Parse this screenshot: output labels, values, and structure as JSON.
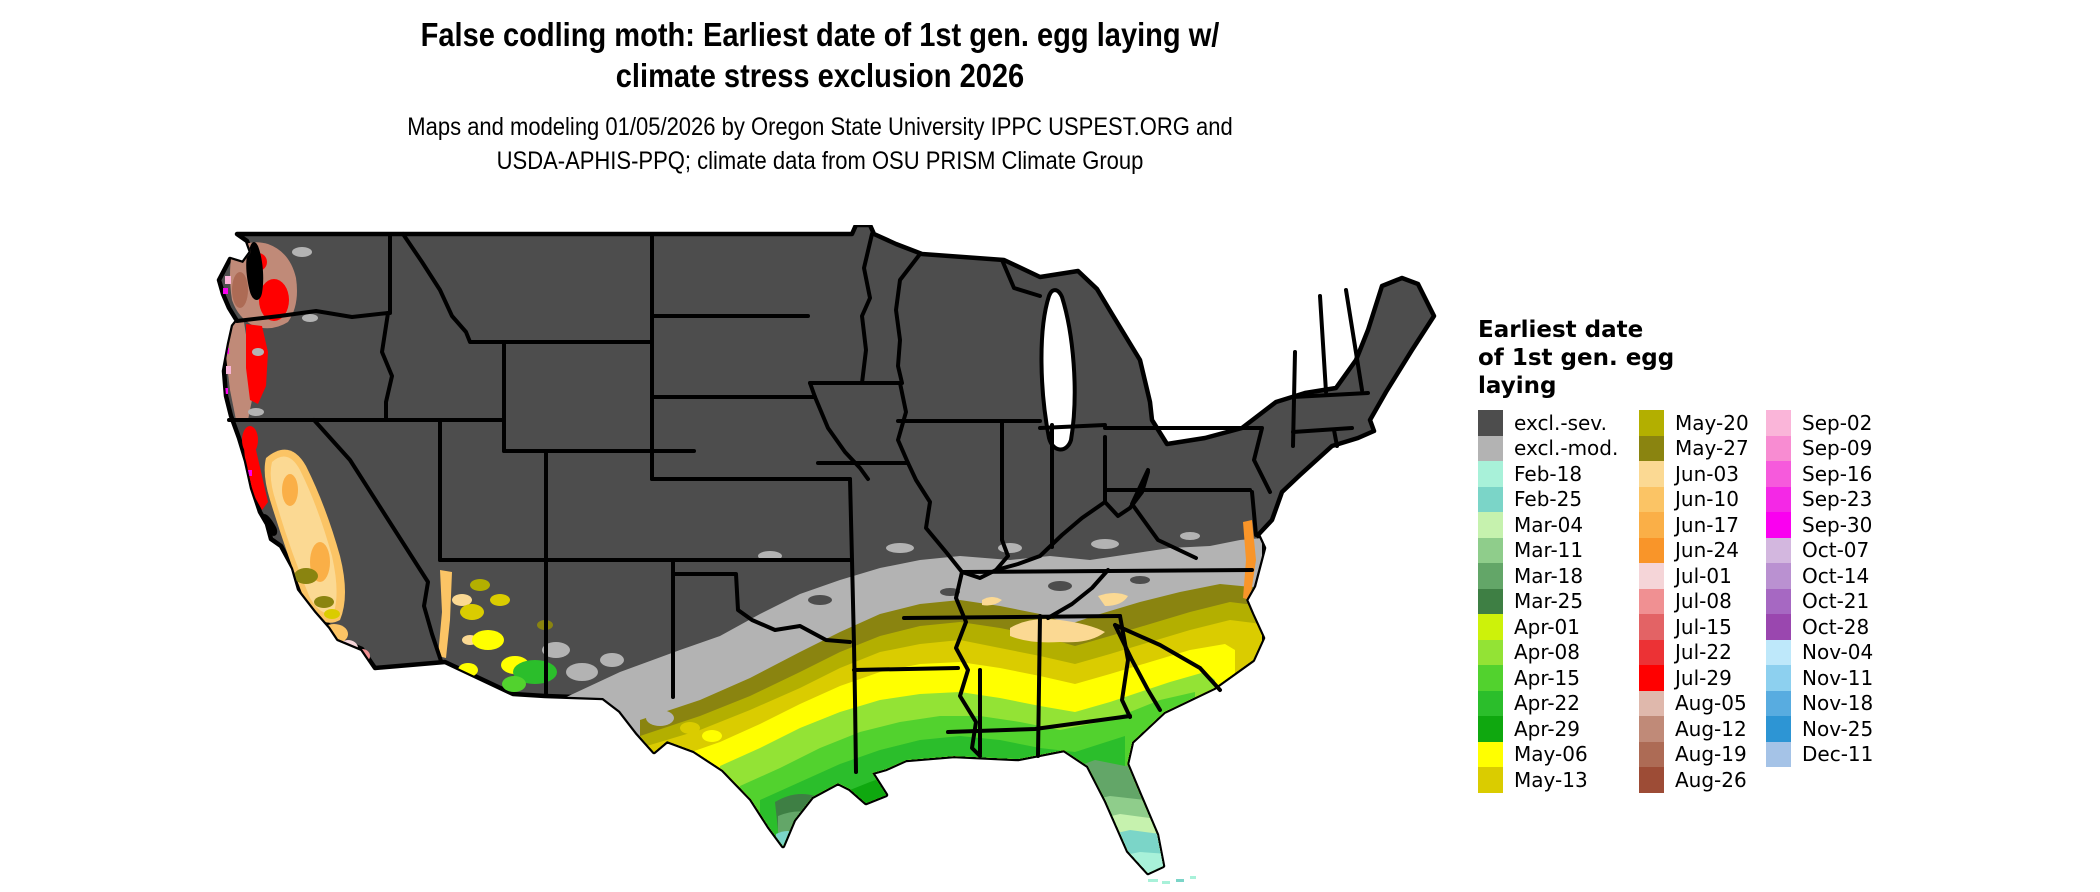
{
  "header": {
    "title_line1": "False codling moth: Earliest date of 1st gen. egg laying w/",
    "title_line2": "climate stress exclusion 2026",
    "subtitle_line1": "Maps and modeling 01/05/2026 by Oregon State University IPPC USPEST.ORG and",
    "subtitle_line2": "USDA-APHIS-PPQ; climate data from OSU PRISM Climate Group"
  },
  "legend": {
    "title_lines": [
      "Earliest date",
      "of 1st gen. egg",
      "laying"
    ],
    "columns": [
      {
        "entries": [
          {
            "label": "excl.-sev.",
            "color_key": "excl_sev"
          },
          {
            "label": "excl.-mod.",
            "color_key": "excl_mod"
          },
          {
            "label": "Feb-18",
            "color_key": "feb18"
          },
          {
            "label": "Feb-25",
            "color_key": "feb25"
          },
          {
            "label": "Mar-04",
            "color_key": "mar04"
          },
          {
            "label": "Mar-11",
            "color_key": "mar11"
          },
          {
            "label": "Mar-18",
            "color_key": "mar18"
          },
          {
            "label": "Mar-25",
            "color_key": "mar25"
          },
          {
            "label": "Apr-01",
            "color_key": "apr01"
          },
          {
            "label": "Apr-08",
            "color_key": "apr08"
          },
          {
            "label": "Apr-15",
            "color_key": "apr15"
          },
          {
            "label": "Apr-22",
            "color_key": "apr22"
          },
          {
            "label": "Apr-29",
            "color_key": "apr29"
          },
          {
            "label": "May-06",
            "color_key": "may06"
          },
          {
            "label": "May-13",
            "color_key": "may13"
          }
        ]
      },
      {
        "entries": [
          {
            "label": "May-20",
            "color_key": "may20"
          },
          {
            "label": "May-27",
            "color_key": "may27"
          },
          {
            "label": "Jun-03",
            "color_key": "jun03"
          },
          {
            "label": "Jun-10",
            "color_key": "jun10"
          },
          {
            "label": "Jun-17",
            "color_key": "jun17"
          },
          {
            "label": "Jun-24",
            "color_key": "jun24"
          },
          {
            "label": "Jul-01",
            "color_key": "jul01"
          },
          {
            "label": "Jul-08",
            "color_key": "jul08"
          },
          {
            "label": "Jul-15",
            "color_key": "jul15"
          },
          {
            "label": "Jul-22",
            "color_key": "jul22"
          },
          {
            "label": "Jul-29",
            "color_key": "jul29"
          },
          {
            "label": "Aug-05",
            "color_key": "aug05"
          },
          {
            "label": "Aug-12",
            "color_key": "aug12"
          },
          {
            "label": "Aug-19",
            "color_key": "aug19"
          },
          {
            "label": "Aug-26",
            "color_key": "aug26"
          }
        ]
      },
      {
        "entries": [
          {
            "label": "Sep-02",
            "color_key": "sep02"
          },
          {
            "label": "Sep-09",
            "color_key": "sep09"
          },
          {
            "label": "Sep-16",
            "color_key": "sep16"
          },
          {
            "label": "Sep-23",
            "color_key": "sep23"
          },
          {
            "label": "Sep-30",
            "color_key": "sep30"
          },
          {
            "label": "Oct-07",
            "color_key": "oct07"
          },
          {
            "label": "Oct-14",
            "color_key": "oct14"
          },
          {
            "label": "Oct-21",
            "color_key": "oct21"
          },
          {
            "label": "Oct-28",
            "color_key": "oct28"
          },
          {
            "label": "Nov-04",
            "color_key": "nov04"
          },
          {
            "label": "Nov-11",
            "color_key": "nov11"
          },
          {
            "label": "Nov-18",
            "color_key": "nov18"
          },
          {
            "label": "Nov-25",
            "color_key": "nov25"
          },
          {
            "label": "Dec-11",
            "color_key": "dec11"
          }
        ]
      }
    ]
  },
  "colors": {
    "excl_sev": "#4D4D4D",
    "excl_mod": "#B3B3B3",
    "feb18": "#A8F1D9",
    "feb25": "#7BD5C8",
    "mar04": "#C6F2AE",
    "mar11": "#8FCD8B",
    "mar18": "#63A668",
    "mar25": "#3E7F44",
    "apr01": "#CDF20A",
    "apr08": "#93E335",
    "apr15": "#52D22E",
    "apr22": "#2BBE2B",
    "apr29": "#0FA80F",
    "may06": "#FFFF00",
    "may13": "#DACC00",
    "may20": "#B3AF00",
    "may27": "#8A8410",
    "jun03": "#FBD993",
    "jun10": "#FBC465",
    "jun17": "#FAAF47",
    "jun24": "#F99529",
    "jul01": "#F5D5D8",
    "jul08": "#F09092",
    "jul15": "#E36365",
    "jul22": "#EC3235",
    "jul29": "#FF0000",
    "aug05": "#DFB8AC",
    "aug12": "#C08A78",
    "aug19": "#AD6B55",
    "aug26": "#9D4C36",
    "sep02": "#FAB5D9",
    "sep09": "#F88CD2",
    "sep16": "#F65ADC",
    "sep23": "#F428E6",
    "sep30": "#FA00F0",
    "oct07": "#D3B7DF",
    "oct14": "#BA91D1",
    "oct21": "#A668C2",
    "oct28": "#9A47AF",
    "nov04": "#BEE8FA",
    "nov11": "#8DD0EF",
    "nov18": "#58ACE0",
    "nov25": "#2D95D4",
    "dec11": "#A5C3E7"
  }
}
